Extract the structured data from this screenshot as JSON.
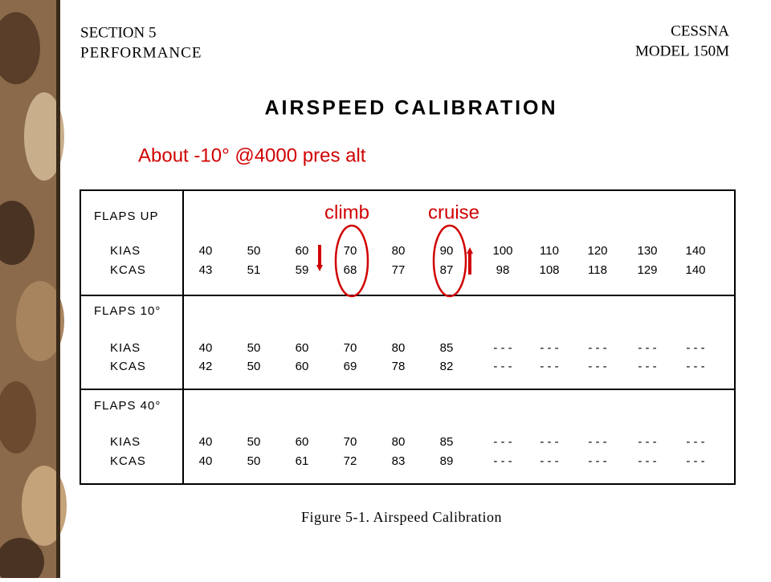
{
  "header": {
    "section": "SECTION 5",
    "subsection": "PERFORMANCE",
    "make": "CESSNA",
    "model": "MODEL 150M"
  },
  "title": "AIRSPEED CALIBRATION",
  "annotation": "About -10° @4000 pres alt",
  "labels": {
    "climb": "climb",
    "cruise": "cruise"
  },
  "table": {
    "sections": [
      {
        "name": "FLAPS UP",
        "rows": [
          {
            "label": "KIAS",
            "values": [
              "40",
              "50",
              "60",
              "70",
              "80",
              "90",
              "100",
              "110",
              "120",
              "130",
              "140"
            ]
          },
          {
            "label": "KCAS",
            "values": [
              "43",
              "51",
              "59",
              "68",
              "77",
              "87",
              "98",
              "108",
              "118",
              "129",
              "140"
            ]
          }
        ]
      },
      {
        "name": "FLAPS 10°",
        "rows": [
          {
            "label": "KIAS",
            "values": [
              "40",
              "50",
              "60",
              "70",
              "80",
              "85",
              "- - -",
              "- - -",
              "- - -",
              "- - -",
              "- - -"
            ]
          },
          {
            "label": "KCAS",
            "values": [
              "42",
              "50",
              "60",
              "69",
              "78",
              "82",
              "- - -",
              "- - -",
              "- - -",
              "- - -",
              "- - -"
            ]
          }
        ]
      },
      {
        "name": "FLAPS 40°",
        "rows": [
          {
            "label": "KIAS",
            "values": [
              "40",
              "50",
              "60",
              "70",
              "80",
              "85",
              "- - -",
              "- - -",
              "- - -",
              "- - -",
              "- - -"
            ]
          },
          {
            "label": "KCAS",
            "values": [
              "40",
              "50",
              "61",
              "72",
              "83",
              "89",
              "- - -",
              "- - -",
              "- - -",
              "- - -",
              "- - -"
            ]
          }
        ]
      }
    ]
  },
  "caption": "Figure 5-1.  Airspeed Calibration"
}
